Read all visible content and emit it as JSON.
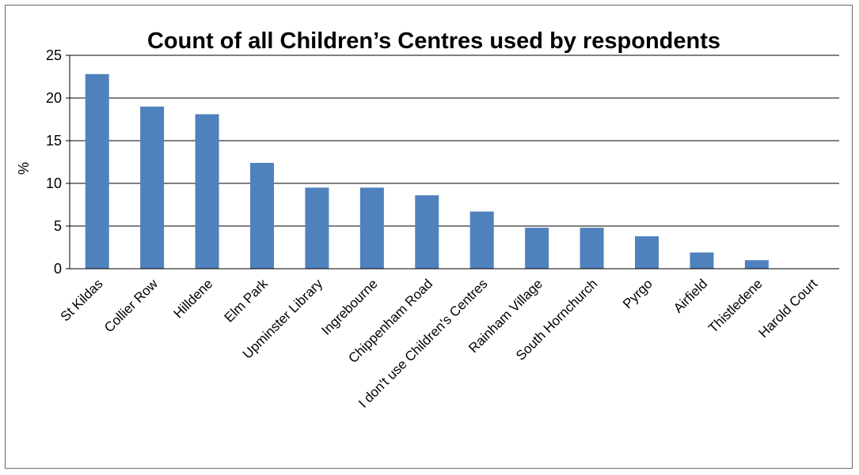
{
  "chart_data": {
    "type": "bar",
    "title": "Count of all Children’s Centres used by respondents",
    "xlabel": "",
    "ylabel": "%",
    "ylim": [
      0,
      25
    ],
    "yticks": [
      0,
      5,
      10,
      15,
      20,
      25
    ],
    "grid": true,
    "legend": "none",
    "bar_color": "#4F81BD",
    "categories": [
      "St Kildas",
      "Collier Row",
      "Hilldene",
      "Elm Park",
      "Upminster Library",
      "Ingrebourne",
      "Chippenham Road",
      "I don't use Children's Centres",
      "Rainham Village",
      "South Hornchurch",
      "Pyrgo",
      "Airfield",
      "Thistledene",
      "Harold Court"
    ],
    "values": [
      22.8,
      19.0,
      18.1,
      12.4,
      9.5,
      9.5,
      8.6,
      6.7,
      4.8,
      4.8,
      3.8,
      1.9,
      1.0,
      0
    ]
  }
}
